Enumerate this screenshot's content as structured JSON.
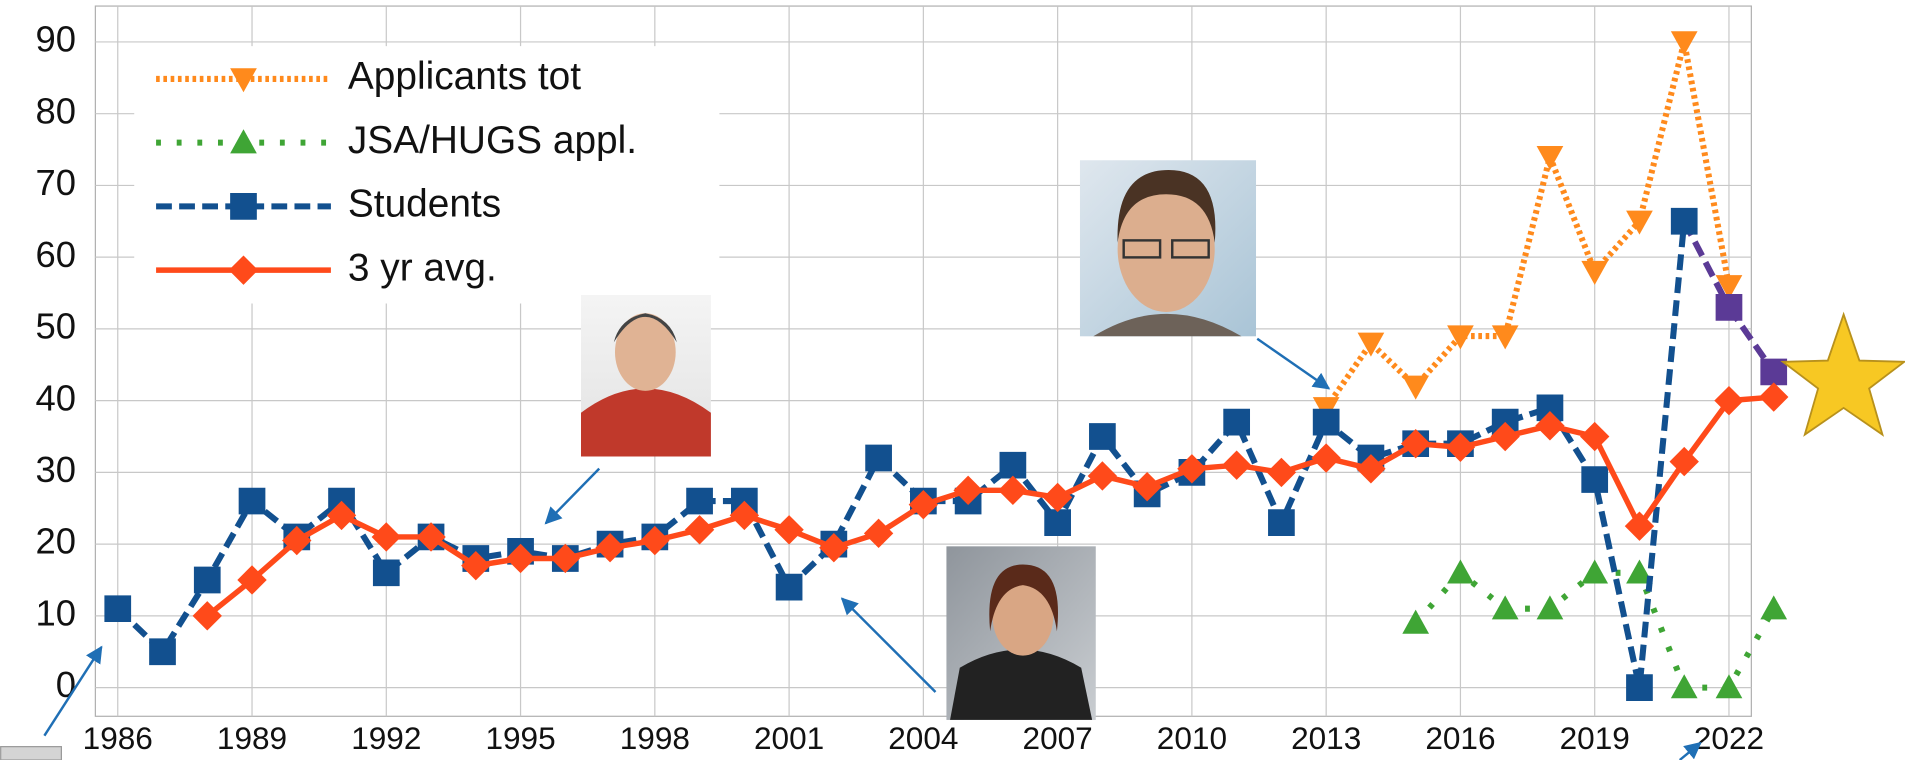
{
  "chart_data": {
    "type": "line",
    "xlim": [
      1985.5,
      2022.5
    ],
    "ylim": [
      -4,
      95
    ],
    "xticks": [
      1986,
      1989,
      1992,
      1995,
      1998,
      2001,
      2004,
      2007,
      2010,
      2013,
      2016,
      2019,
      2022
    ],
    "yticks": [
      0,
      10,
      20,
      30,
      40,
      50,
      60,
      70,
      80,
      90
    ],
    "grid": true,
    "legend": "upper left",
    "series": [
      {
        "name": "Applicants tot",
        "color": "#ff8a1c",
        "dash": "dotted",
        "marker": "triangle-down",
        "x": [
          2013,
          2014,
          2015,
          2016,
          2017,
          2018,
          2019,
          2020,
          2021,
          2022
        ],
        "values": [
          39,
          48,
          42,
          49,
          49,
          74,
          58,
          65,
          90,
          56
        ]
      },
      {
        "name": "JSA/HUGS appl.",
        "color": "#3fa535",
        "dash": "sparse-dotted",
        "marker": "triangle-up",
        "x": [
          2015,
          2016,
          2017,
          2018,
          2019,
          2020,
          2021,
          2022,
          2023
        ],
        "values": [
          9,
          16,
          11,
          11,
          16,
          16,
          0,
          0,
          11
        ]
      },
      {
        "name": "Students",
        "color": "#12508f",
        "dash": "dashed",
        "marker": "square",
        "x": [
          1986,
          1987,
          1988,
          1989,
          1990,
          1991,
          1992,
          1993,
          1994,
          1995,
          1996,
          1997,
          1998,
          1999,
          2000,
          2001,
          2002,
          2003,
          2004,
          2005,
          2006,
          2007,
          2008,
          2009,
          2010,
          2011,
          2012,
          2013,
          2014,
          2015,
          2016,
          2017,
          2018,
          2019,
          2020,
          2021
        ],
        "values": [
          11,
          5,
          15,
          26,
          21,
          26,
          16,
          21,
          18,
          19,
          18,
          20,
          21,
          26,
          26,
          14,
          20,
          32,
          26,
          26,
          31,
          23,
          35,
          27,
          30,
          37,
          23,
          37,
          32,
          34,
          34,
          37,
          39,
          29,
          0,
          65
        ],
        "projection": {
          "color": "#5b3a96",
          "x": [
            2022,
            2023
          ],
          "values": [
            53,
            44
          ]
        }
      },
      {
        "name": "3 yr avg.",
        "color": "#ff4a1a",
        "dash": "solid",
        "marker": "diamond",
        "x": [
          1988,
          1989,
          1990,
          1991,
          1992,
          1993,
          1994,
          1995,
          1996,
          1997,
          1998,
          1999,
          2000,
          2001,
          2002,
          2003,
          2004,
          2005,
          2006,
          2007,
          2008,
          2009,
          2010,
          2011,
          2012,
          2013,
          2014,
          2015,
          2016,
          2017,
          2018,
          2019,
          2020,
          2021,
          2022,
          2023
        ],
        "values": [
          10,
          15,
          20.5,
          24,
          21,
          21,
          17,
          18,
          18,
          19.5,
          20.5,
          22,
          24,
          22,
          19.5,
          21.5,
          25.5,
          27.5,
          27.5,
          26.5,
          29.5,
          28,
          30.5,
          31,
          30,
          32,
          30.5,
          34,
          33.5,
          35,
          36.5,
          35,
          22.5,
          31.5,
          40,
          40.5
        ]
      }
    ]
  }
}
